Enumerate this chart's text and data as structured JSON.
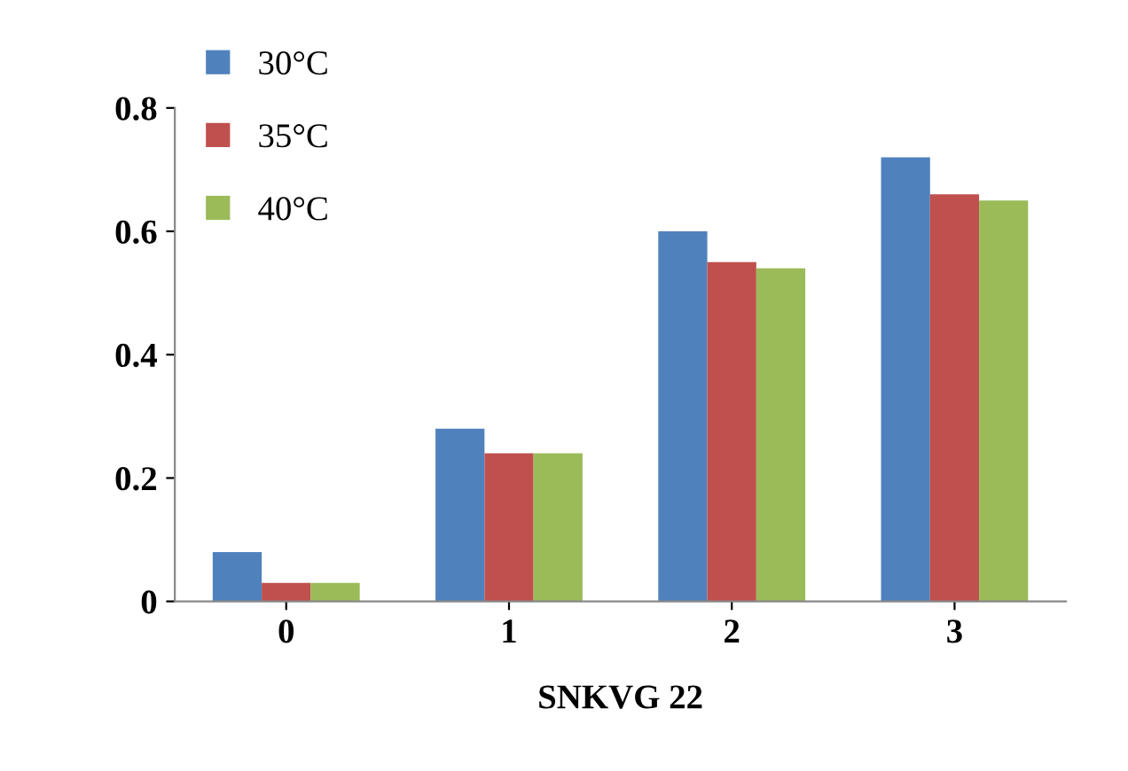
{
  "chart_data": {
    "type": "bar",
    "xlabel": "SNKVG 22",
    "categories": [
      "0",
      "1",
      "2",
      "3"
    ],
    "series": [
      {
        "name": "30°C",
        "color": "#4f81bd",
        "values": [
          0.08,
          0.28,
          0.6,
          0.72
        ]
      },
      {
        "name": "35°C",
        "color": "#c0504d",
        "values": [
          0.03,
          0.24,
          0.55,
          0.66
        ]
      },
      {
        "name": "40°C",
        "color": "#9bbb59",
        "values": [
          0.03,
          0.24,
          0.54,
          0.65
        ]
      }
    ],
    "ylim": [
      0,
      0.8
    ],
    "yticks": [
      {
        "value": 0,
        "label": "0"
      },
      0.2,
      0.4,
      0.6,
      0.8
    ],
    "grid": false,
    "legend": "top left"
  }
}
